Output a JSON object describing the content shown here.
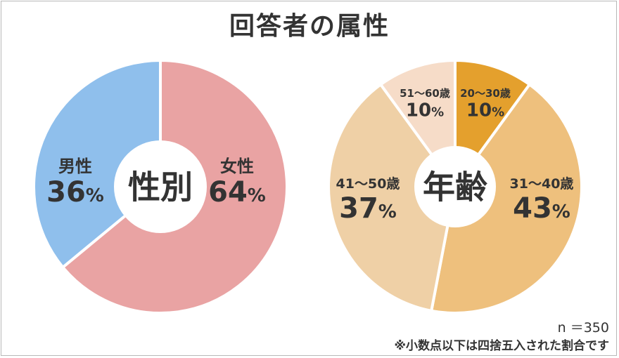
{
  "title": "回答者の属性",
  "footnote": {
    "n": "n ＝350",
    "note": "※小数点以下は四捨五入された割合です"
  },
  "chart_data": [
    {
      "type": "pie",
      "center_label": "性別",
      "slices": [
        {
          "label": "女性",
          "value": 64,
          "value_text": "64",
          "color": "#e9a3a3"
        },
        {
          "label": "男性",
          "value": 36,
          "value_text": "36",
          "color": "#8fbfec"
        }
      ]
    },
    {
      "type": "pie",
      "center_label": "年齢",
      "slices": [
        {
          "label": "20～30歳",
          "value": 10,
          "value_text": "10",
          "color": "#e4a02d"
        },
        {
          "label": "31～40歳",
          "value": 43,
          "value_text": "43",
          "color": "#eec07d"
        },
        {
          "label": "41～50歳",
          "value": 37,
          "value_text": "37",
          "color": "#efd0a6"
        },
        {
          "label": "51～60歳",
          "value": 10,
          "value_text": "10",
          "color": "#f6dcc8"
        }
      ]
    }
  ]
}
